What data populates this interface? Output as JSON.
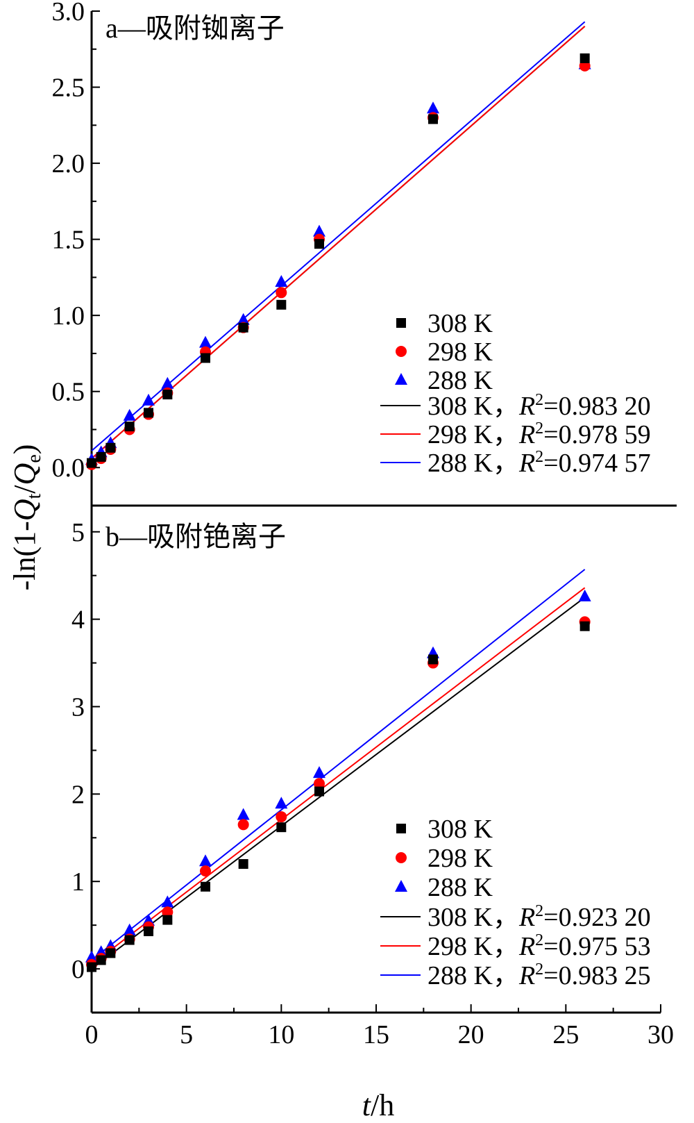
{
  "chart_data": [
    {
      "type": "scatter",
      "panel": "a",
      "title": "a—吸附铷离子",
      "xlabel": "t/h",
      "ylabel": "-ln(1-Qt/Qe)",
      "xlim": [
        0,
        30
      ],
      "ylim": [
        -0.25,
        3.0
      ],
      "x_ticks": [
        "0",
        "5",
        "10",
        "15",
        "20",
        "25",
        "30"
      ],
      "y_ticks": [
        "0.0",
        "0.5",
        "1.0",
        "1.5",
        "2.0",
        "2.5",
        "3.0"
      ],
      "y_tick_values": [
        0,
        0.5,
        1.0,
        1.5,
        2.0,
        2.5,
        3.0
      ],
      "legend_position": "bottom-right",
      "series": [
        {
          "name": "308 K",
          "marker": "square",
          "color": "#000000",
          "x": [
            0,
            0.5,
            1,
            2,
            3,
            4,
            6,
            8,
            10,
            12,
            18,
            26
          ],
          "y": [
            0.03,
            0.07,
            0.13,
            0.27,
            0.36,
            0.48,
            0.72,
            0.92,
            1.07,
            1.47,
            2.29,
            2.69
          ]
        },
        {
          "name": "298 K",
          "marker": "circle",
          "color": "#ff0000",
          "x": [
            0,
            0.5,
            1,
            2,
            3,
            4,
            6,
            8,
            10,
            12,
            18,
            26
          ],
          "y": [
            0.02,
            0.06,
            0.12,
            0.25,
            0.35,
            0.49,
            0.76,
            0.92,
            1.15,
            1.5,
            2.3,
            2.64
          ]
        },
        {
          "name": "288 K",
          "marker": "triangle",
          "color": "#0000ff",
          "x": [
            0,
            0.5,
            1,
            2,
            3,
            4,
            6,
            8,
            10,
            12,
            18,
            26
          ],
          "y": [
            0.05,
            0.1,
            0.16,
            0.34,
            0.44,
            0.55,
            0.82,
            0.97,
            1.22,
            1.55,
            2.36,
            2.65
          ]
        }
      ],
      "fits": [
        {
          "name": "308 K",
          "r2_label": "R",
          "r2_sup": "2",
          "r2_value": "=0.983 20",
          "color": "#000000",
          "x": [
            0,
            26
          ],
          "y": [
            0.06,
            2.9
          ]
        },
        {
          "name": "298 K",
          "r2_label": "R",
          "r2_sup": "2",
          "r2_value": "=0.978 59",
          "color": "#ff0000",
          "x": [
            0,
            26
          ],
          "y": [
            0.06,
            2.9
          ]
        },
        {
          "name": "288 K",
          "r2_label": "R",
          "r2_sup": "2",
          "r2_value": "=0.974 57",
          "color": "#0000ff",
          "x": [
            0,
            26
          ],
          "y": [
            0.11,
            2.93
          ]
        }
      ]
    },
    {
      "type": "scatter",
      "panel": "b",
      "title": "b—吸附铯离子",
      "xlabel": "t/h",
      "ylabel": "-ln(1-Qt/Qe)",
      "xlim": [
        0,
        30
      ],
      "ylim": [
        -0.5,
        5.3
      ],
      "x_ticks": [
        "0",
        "5",
        "10",
        "15",
        "20",
        "25",
        "30"
      ],
      "y_ticks": [
        "0",
        "1",
        "2",
        "3",
        "4",
        "5"
      ],
      "y_tick_values": [
        0,
        1,
        2,
        3,
        4,
        5
      ],
      "legend_position": "bottom-right",
      "series": [
        {
          "name": "308 K",
          "marker": "square",
          "color": "#000000",
          "x": [
            0,
            0.5,
            1,
            2,
            3,
            4,
            6,
            8,
            10,
            12,
            18,
            26
          ],
          "y": [
            0.02,
            0.1,
            0.18,
            0.33,
            0.43,
            0.56,
            0.94,
            1.2,
            1.62,
            2.03,
            3.54,
            3.92
          ]
        },
        {
          "name": "298 K",
          "marker": "circle",
          "color": "#ff0000",
          "x": [
            0,
            0.5,
            1,
            2,
            3,
            4,
            6,
            8,
            10,
            12,
            18,
            26
          ],
          "y": [
            0.05,
            0.12,
            0.2,
            0.34,
            0.48,
            0.65,
            1.12,
            1.65,
            1.74,
            2.12,
            3.5,
            3.97
          ]
        },
        {
          "name": "288 K",
          "marker": "triangle",
          "color": "#0000ff",
          "x": [
            0,
            0.5,
            1,
            2,
            3,
            4,
            6,
            8,
            10,
            12,
            18,
            26
          ],
          "y": [
            0.13,
            0.19,
            0.26,
            0.44,
            0.55,
            0.76,
            1.23,
            1.76,
            1.89,
            2.24,
            3.61,
            4.26
          ]
        }
      ],
      "fits": [
        {
          "name": "308 K",
          "r2_label": "R",
          "r2_sup": "2",
          "r2_value": "=0.923 20",
          "color": "#000000",
          "x": [
            0,
            26
          ],
          "y": [
            0.0,
            4.25
          ]
        },
        {
          "name": "298 K",
          "r2_label": "R",
          "r2_sup": "2",
          "r2_value": "=0.975 53",
          "color": "#ff0000",
          "x": [
            0,
            26
          ],
          "y": [
            0.05,
            4.36
          ]
        },
        {
          "name": "288 K",
          "r2_label": "R",
          "r2_sup": "2",
          "r2_value": "=0.983 25",
          "color": "#0000ff",
          "x": [
            0,
            26
          ],
          "y": [
            0.1,
            4.57
          ]
        }
      ]
    }
  ],
  "axis_text": {
    "y_prefix": "-ln(1-",
    "y_q1": "Q",
    "y_q1_sub": "t",
    "y_slash": "/",
    "y_q2": "Q",
    "y_q2_sub": "e",
    "y_suffix": ")",
    "x_t": "t",
    "x_unit": "/h"
  }
}
